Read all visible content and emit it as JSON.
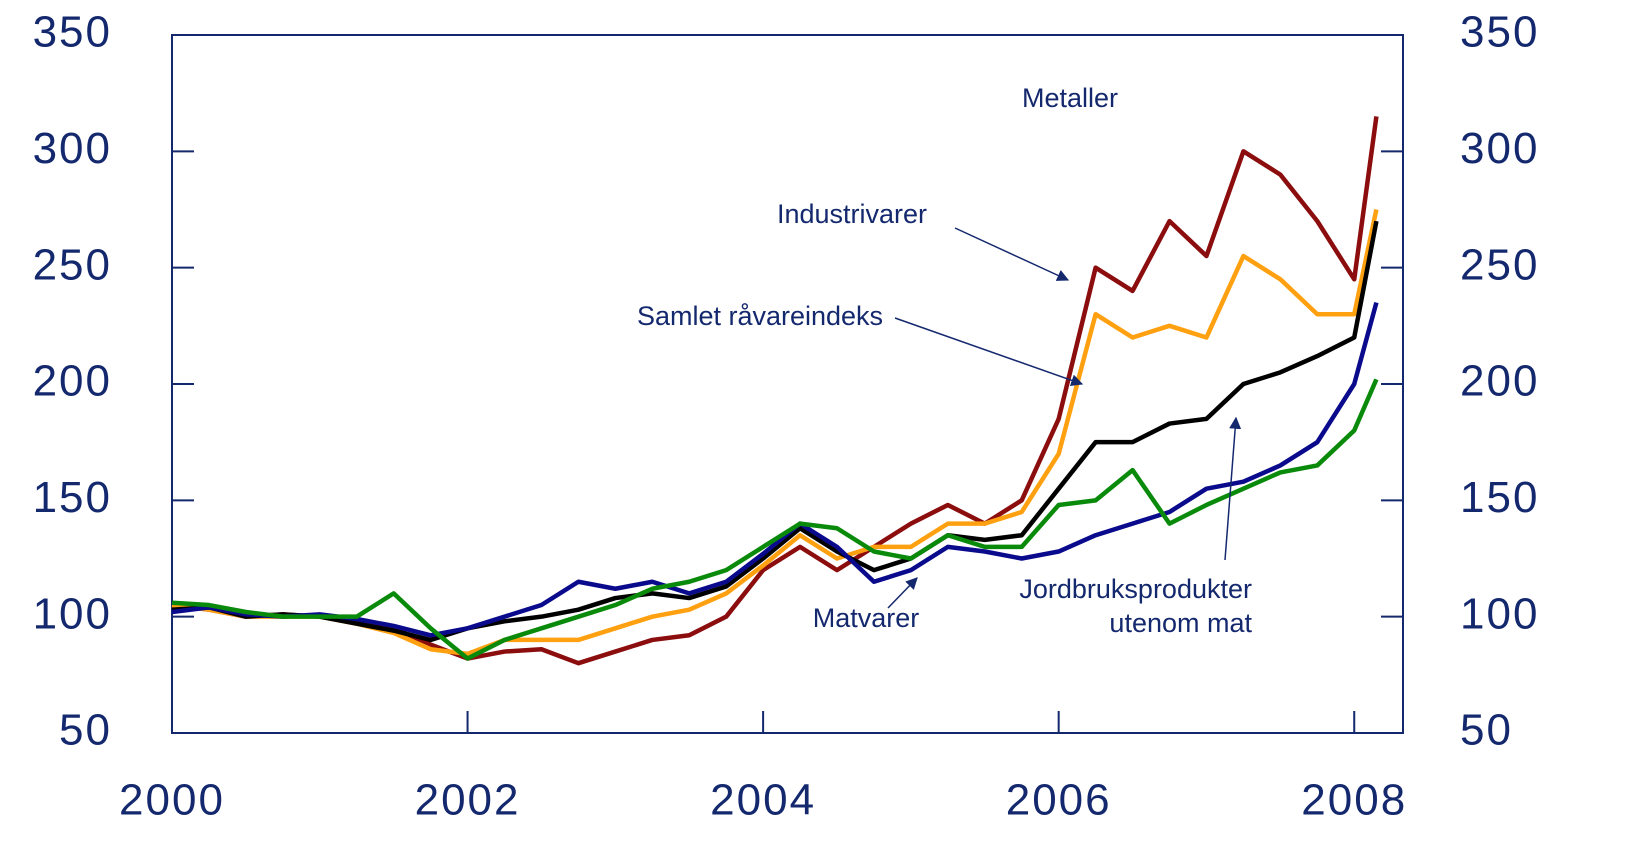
{
  "chart_data": {
    "type": "line",
    "x": [
      2000,
      2000.25,
      2000.5,
      2000.75,
      2001,
      2001.25,
      2001.5,
      2001.75,
      2002,
      2002.25,
      2002.5,
      2002.75,
      2003,
      2003.25,
      2003.5,
      2003.75,
      2004,
      2004.25,
      2004.5,
      2004.75,
      2005,
      2005.25,
      2005.5,
      2005.75,
      2006,
      2006.25,
      2006.5,
      2006.75,
      2007,
      2007.25,
      2007.5,
      2007.75,
      2008,
      2008.15
    ],
    "series": [
      {
        "name": "Metaller",
        "color": "#8b0d0d",
        "values": [
          105,
          103,
          100,
          101,
          100,
          98,
          95,
          88,
          82,
          85,
          86,
          80,
          85,
          90,
          92,
          100,
          120,
          130,
          120,
          130,
          140,
          148,
          140,
          150,
          185,
          250,
          240,
          270,
          255,
          300,
          290,
          270,
          245,
          315
        ]
      },
      {
        "name": "Industrivarer",
        "color": "#ffa010",
        "values": [
          105,
          103,
          100,
          100,
          100,
          97,
          93,
          86,
          84,
          90,
          90,
          90,
          95,
          100,
          103,
          110,
          122,
          135,
          125,
          130,
          130,
          140,
          140,
          145,
          170,
          230,
          220,
          225,
          220,
          255,
          245,
          230,
          230,
          275
        ]
      },
      {
        "name": "Samlet råvareindeks",
        "color": "#000000",
        "values": [
          103,
          104,
          100,
          101,
          100,
          97,
          94,
          90,
          95,
          98,
          100,
          103,
          108,
          110,
          108,
          113,
          125,
          138,
          128,
          120,
          125,
          135,
          133,
          135,
          155,
          175,
          175,
          183,
          185,
          200,
          205,
          212,
          220,
          270
        ]
      },
      {
        "name": "Jordbruksprodukter utenom mat",
        "color": "#0a0a8c",
        "values": [
          102,
          104,
          101,
          100,
          101,
          99,
          96,
          92,
          95,
          100,
          105,
          115,
          112,
          115,
          110,
          115,
          127,
          140,
          130,
          115,
          120,
          130,
          128,
          125,
          128,
          135,
          140,
          145,
          155,
          158,
          165,
          175,
          200,
          235
        ]
      },
      {
        "name": "Matvarer",
        "color": "#0a8a0a",
        "values": [
          106,
          105,
          102,
          100,
          100,
          100,
          110,
          95,
          82,
          90,
          95,
          100,
          105,
          112,
          115,
          120,
          130,
          140,
          138,
          128,
          125,
          135,
          130,
          130,
          148,
          150,
          163,
          140,
          148,
          155,
          162,
          165,
          180,
          202
        ]
      }
    ],
    "xlim": [
      2000,
      2008.33
    ],
    "xticks": [
      2000,
      2002,
      2004,
      2006,
      2008
    ],
    "ylim": [
      50,
      350
    ],
    "yticks": [
      50,
      100,
      150,
      200,
      250,
      300,
      350
    ],
    "y2lim": [
      50,
      350
    ],
    "y2ticks": [
      50,
      100,
      150,
      200,
      250,
      300,
      350
    ]
  }
}
